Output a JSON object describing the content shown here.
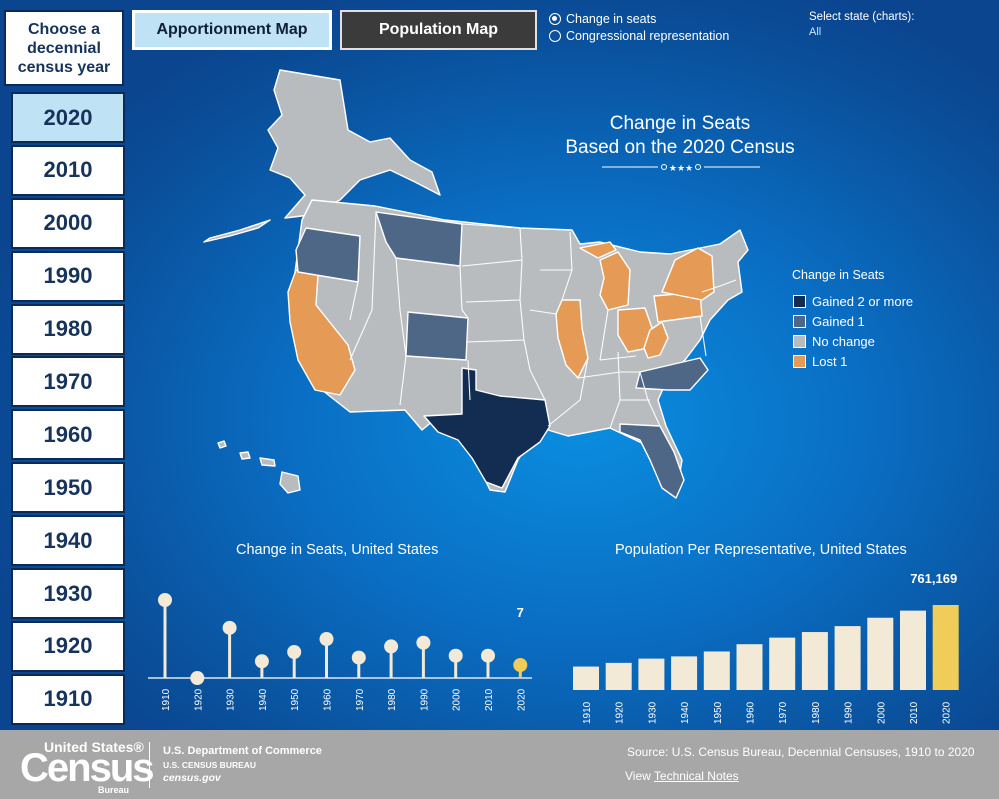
{
  "sidebar": {
    "heading": "Choose a decennial census year",
    "years": [
      "2020",
      "2010",
      "2000",
      "1990",
      "1980",
      "1970",
      "1960",
      "1950",
      "1940",
      "1930",
      "1920",
      "1910"
    ],
    "selected": "2020"
  },
  "tabs": {
    "apportionment": "Apportionment Map",
    "population": "Population Map",
    "active": "Apportionment Map"
  },
  "view_options": {
    "change": "Change in seats",
    "representation": "Congressional representation",
    "selected": "Change in seats"
  },
  "state_select": {
    "label": "Select state (charts):",
    "value": "All"
  },
  "map": {
    "title_line1": "Change in Seats",
    "title_line2": "Based on the 2020 Census",
    "legend_title": "Change in Seats",
    "legend": [
      {
        "label": "Gained 2 or more",
        "color": "#132d52"
      },
      {
        "label": "Gained 1",
        "color": "#4f6787"
      },
      {
        "label": "No change",
        "color": "#b9bcbf"
      },
      {
        "label": "Lost 1",
        "color": "#e59b55"
      }
    ]
  },
  "seats_chart_title": "Change in Seats, United States",
  "pop_chart_title": "Population Per Representative, United States",
  "chart_data": [
    {
      "type": "scatter",
      "title": "Change in Seats, United States",
      "categories": [
        "1910",
        "1920",
        "1930",
        "1940",
        "1950",
        "1960",
        "1970",
        "1980",
        "1990",
        "2000",
        "2010",
        "2020"
      ],
      "values": [
        42,
        0,
        27,
        9,
        14,
        21,
        11,
        17,
        19,
        12,
        12,
        7
      ],
      "highlight": "2020",
      "data_label": "7",
      "colors": {
        "default": "#f2ead6",
        "highlight": "#f0cc58"
      }
    },
    {
      "type": "bar",
      "title": "Population Per Representative, United States",
      "categories": [
        "1910",
        "1920",
        "1930",
        "1940",
        "1950",
        "1960",
        "1970",
        "1980",
        "1990",
        "2000",
        "2010",
        "2020"
      ],
      "values": [
        210000,
        243000,
        281000,
        301000,
        345000,
        410000,
        469000,
        519000,
        572000,
        647000,
        710767,
        761169
      ],
      "highlight": "2020",
      "data_label": "761,169",
      "colors": {
        "default": "#f2ead6",
        "highlight": "#f0cc58"
      }
    }
  ],
  "footer": {
    "logo_top": "United States®",
    "logo_main": "Census",
    "logo_sub": "Bureau",
    "dept": "U.S. Department of Commerce",
    "bureau": "U.S. CENSUS BUREAU",
    "site": "census.gov",
    "source": "Source: U.S. Census Bureau, Decennial Censuses, 1910 to 2020",
    "view_prefix": "View ",
    "view_link": "Technical Notes"
  }
}
